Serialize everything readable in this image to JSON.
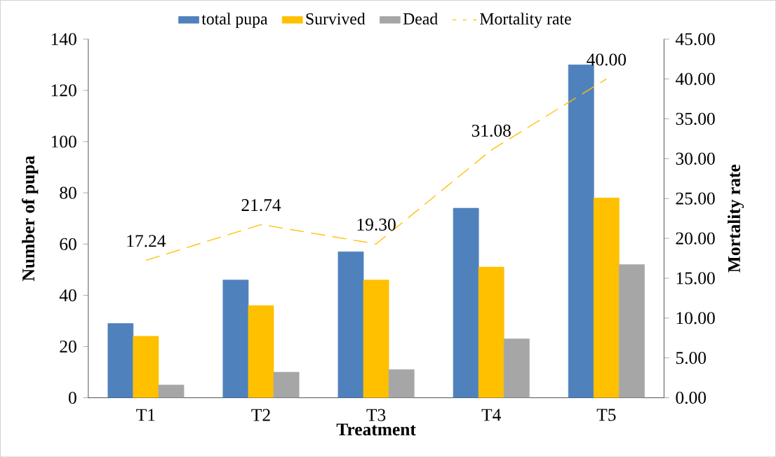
{
  "chart_data": {
    "type": "bar",
    "xlabel": "Treatment",
    "ylabel": "Number of pupa",
    "y2label": "Mortality rate",
    "categories": [
      "T1",
      "T2",
      "T3",
      "T4",
      "T5"
    ],
    "series": [
      {
        "name": "total pupa",
        "color": "#4f81bd",
        "values": [
          29,
          46,
          57,
          74,
          130
        ]
      },
      {
        "name": "Survived",
        "color": "#ffc000",
        "values": [
          24,
          36,
          46,
          51,
          78
        ]
      },
      {
        "name": "Dead",
        "color": "#a6a6a6",
        "values": [
          5,
          10,
          11,
          23,
          52
        ]
      },
      {
        "name": "Mortality rate",
        "type": "line",
        "axis": "y2",
        "color": "#ffc000",
        "line_style": "dashed",
        "marker": "none",
        "values": [
          17.24,
          21.74,
          19.3,
          31.08,
          40.0
        ],
        "value_labels": [
          "17.24",
          "21.74",
          "19.30",
          "31.08",
          "40.00"
        ]
      }
    ],
    "ylim": [
      0,
      140
    ],
    "yticks": [
      0,
      20,
      40,
      60,
      80,
      100,
      120,
      140
    ],
    "y2lim": [
      0,
      45
    ],
    "y2ticks": [
      {
        "value": 0,
        "label": "0.00"
      },
      {
        "value": 5,
        "label": "5.00"
      },
      {
        "value": 10,
        "label": "10.00"
      },
      {
        "value": 15,
        "label": "15.00"
      },
      {
        "value": 20,
        "label": "20.00"
      },
      {
        "value": 25,
        "label": "25.00"
      },
      {
        "value": 30,
        "label": "30.00"
      },
      {
        "value": 35,
        "label": "35.00"
      },
      {
        "value": 40,
        "label": "40.00"
      },
      {
        "value": 45,
        "label": "45.00"
      }
    ],
    "legend": "top",
    "grid": false
  }
}
